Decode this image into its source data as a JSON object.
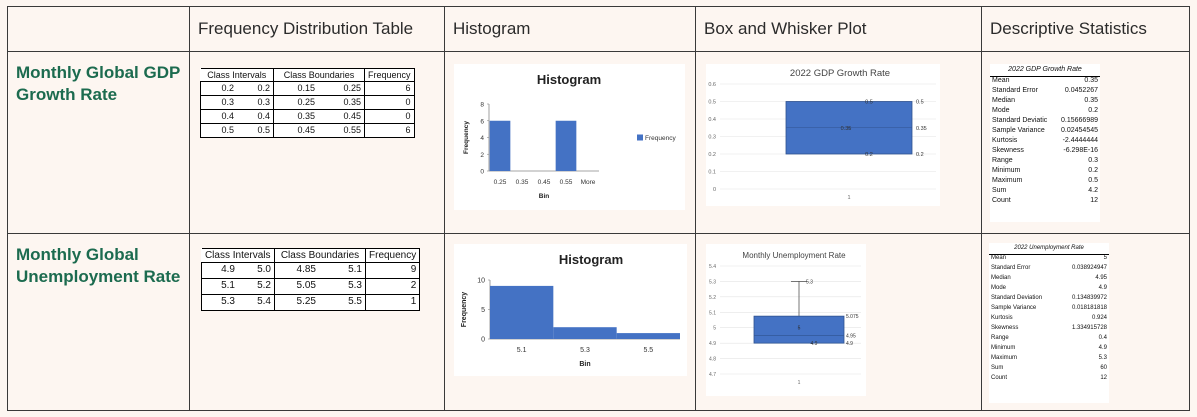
{
  "headers": [
    "",
    "Frequency Distribution Table",
    "Histogram",
    "Box and Whisker Plot",
    "Descriptive Statistics"
  ],
  "rows": [
    {
      "label": "Monthly Global GDP Growth Rate",
      "freq_table": {
        "headers": [
          "Class Intervals",
          "Class Boundaries",
          "Frequency"
        ],
        "rows": [
          [
            "0.2",
            "0.2",
            "0.15",
            "0.25",
            "6"
          ],
          [
            "0.3",
            "0.3",
            "0.25",
            "0.35",
            "0"
          ],
          [
            "0.4",
            "0.4",
            "0.35",
            "0.45",
            "0"
          ],
          [
            "0.5",
            "0.5",
            "0.45",
            "0.55",
            "6"
          ]
        ]
      },
      "stats": {
        "title": "2022 GDP Growth Rate",
        "items": [
          [
            "Mean",
            "0.35"
          ],
          [
            "Standard Error",
            "0.0452267"
          ],
          [
            "Median",
            "0.35"
          ],
          [
            "Mode",
            "0.2"
          ],
          [
            "Standard Deviatic",
            "0.15666989"
          ],
          [
            "Sample Variance",
            "0.02454545"
          ],
          [
            "Kurtosis",
            "-2.4444444"
          ],
          [
            "Skewness",
            "-6.298E-16"
          ],
          [
            "Range",
            "0.3"
          ],
          [
            "Minimum",
            "0.2"
          ],
          [
            "Maximum",
            "0.5"
          ],
          [
            "Sum",
            "4.2"
          ],
          [
            "Count",
            "12"
          ]
        ]
      }
    },
    {
      "label": "Monthly Global Unemployment Rate",
      "freq_table": {
        "headers": [
          "Class Intervals",
          "Class Boundaries",
          "Frequency"
        ],
        "rows": [
          [
            "4.9",
            "5.0",
            "4.85",
            "5.1",
            "9"
          ],
          [
            "5.1",
            "5.2",
            "5.05",
            "5.3",
            "2"
          ],
          [
            "5.3",
            "5.4",
            "5.25",
            "5.5",
            "1"
          ]
        ]
      },
      "stats": {
        "title": "2022 Unemployment Rate",
        "items": [
          [
            "Mean",
            "5"
          ],
          [
            "Standard Error",
            "0.038924947"
          ],
          [
            "Median",
            "4.95"
          ],
          [
            "Mode",
            "4.9"
          ],
          [
            "Standard Deviation",
            "0.134839972"
          ],
          [
            "Sample Variance",
            "0.018181818"
          ],
          [
            "Kurtosis",
            "0.924"
          ],
          [
            "Skewness",
            "1.334915728"
          ],
          [
            "Range",
            "0.4"
          ],
          [
            "Minimum",
            "4.9"
          ],
          [
            "Maximum",
            "5.3"
          ],
          [
            "Sum",
            "60"
          ],
          [
            "Count",
            "12"
          ]
        ]
      }
    }
  ],
  "chart_data": [
    {
      "id": "gdp-histogram",
      "type": "bar",
      "title": "Histogram",
      "xlabel": "Bin",
      "ylabel": "Frequency",
      "categories": [
        "0.25",
        "0.35",
        "0.45",
        "0.55",
        "More"
      ],
      "series": [
        {
          "name": "Frequency",
          "values": [
            6,
            0,
            0,
            6,
            0
          ]
        }
      ],
      "ylim": [
        0,
        8
      ],
      "yticks": [
        "0",
        "2",
        "4",
        "6",
        "8"
      ],
      "legend": "right",
      "color": "#4472c4"
    },
    {
      "id": "unemp-histogram",
      "type": "bar",
      "title": "Histogram",
      "xlabel": "Bin",
      "ylabel": "Frequency",
      "categories": [
        "5.1",
        "5.3",
        "5.5"
      ],
      "series": [
        {
          "values": [
            9,
            2,
            1
          ]
        }
      ],
      "ylim": [
        0,
        10
      ],
      "yticks": [
        "0",
        "5",
        "10"
      ],
      "color": "#4472c4"
    },
    {
      "id": "gdp-boxplot",
      "type": "box",
      "title": "2022 GDP Growth Rate",
      "ylim": [
        0,
        0.6
      ],
      "yticks": [
        "0",
        "0.1",
        "0.2",
        "0.3",
        "0.4",
        "0.5",
        "0.6"
      ],
      "xticks": [
        "1"
      ],
      "min": 0.2,
      "q1": 0.2,
      "median": 0.35,
      "mean": 0.35,
      "q3": 0.5,
      "max": 0.5,
      "labels": [
        "0.5",
        "0.5",
        "0.35",
        "0.35",
        "0.2",
        "0.2"
      ],
      "color": "#4472c4"
    },
    {
      "id": "unemp-boxplot",
      "type": "box",
      "title": "Monthly Unemployment Rate",
      "ylim": [
        4.7,
        5.4
      ],
      "yticks": [
        "4.7",
        "4.8",
        "4.9",
        "5",
        "5.1",
        "5.2",
        "5.3",
        "5.4"
      ],
      "xticks": [
        "1"
      ],
      "min": 4.9,
      "q1": 4.9,
      "median": 4.95,
      "mean": 5.0,
      "q3": 5.075,
      "max": 5.3,
      "labels": [
        "5.3",
        "5.075",
        "5",
        "4.95",
        "4.9",
        "4.9"
      ],
      "color": "#4472c4"
    }
  ]
}
